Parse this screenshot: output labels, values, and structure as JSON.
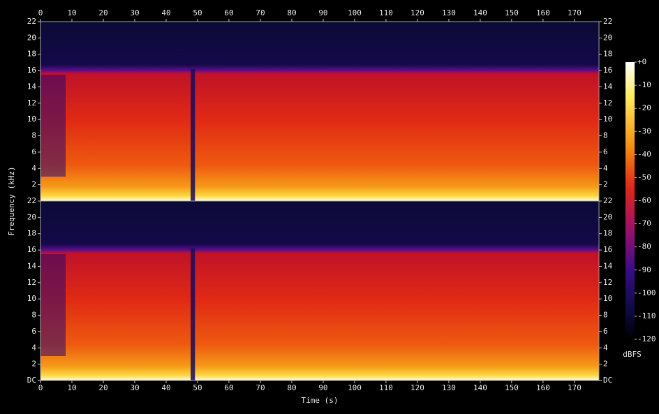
{
  "chart_data": {
    "type": "spectrogram",
    "xlabel": "Time (s)",
    "ylabel": "Frequency (kHz)",
    "xlim": [
      0,
      177.8
    ],
    "xticks": [
      0,
      10,
      20,
      30,
      40,
      50,
      60,
      70,
      80,
      90,
      100,
      110,
      120,
      130,
      140,
      150,
      160,
      170
    ],
    "ylim": [
      0,
      22
    ],
    "channels": [
      {
        "yticks": [
          2,
          4,
          6,
          8,
          10,
          12,
          14,
          16,
          18,
          20,
          22
        ]
      },
      {
        "yticks": [
          {
            "value": 0,
            "label": "DC"
          },
          2,
          4,
          6,
          8,
          10,
          12,
          14,
          16,
          18,
          20,
          22
        ]
      }
    ],
    "colorbar": {
      "label": "dBFS",
      "lim": [
        -120,
        0
      ],
      "ticks": [
        {
          "value": 0,
          "label": "+0"
        },
        -10,
        -20,
        -30,
        -40,
        -50,
        -60,
        -70,
        -80,
        -90,
        -100,
        -110,
        -120
      ]
    }
  }
}
